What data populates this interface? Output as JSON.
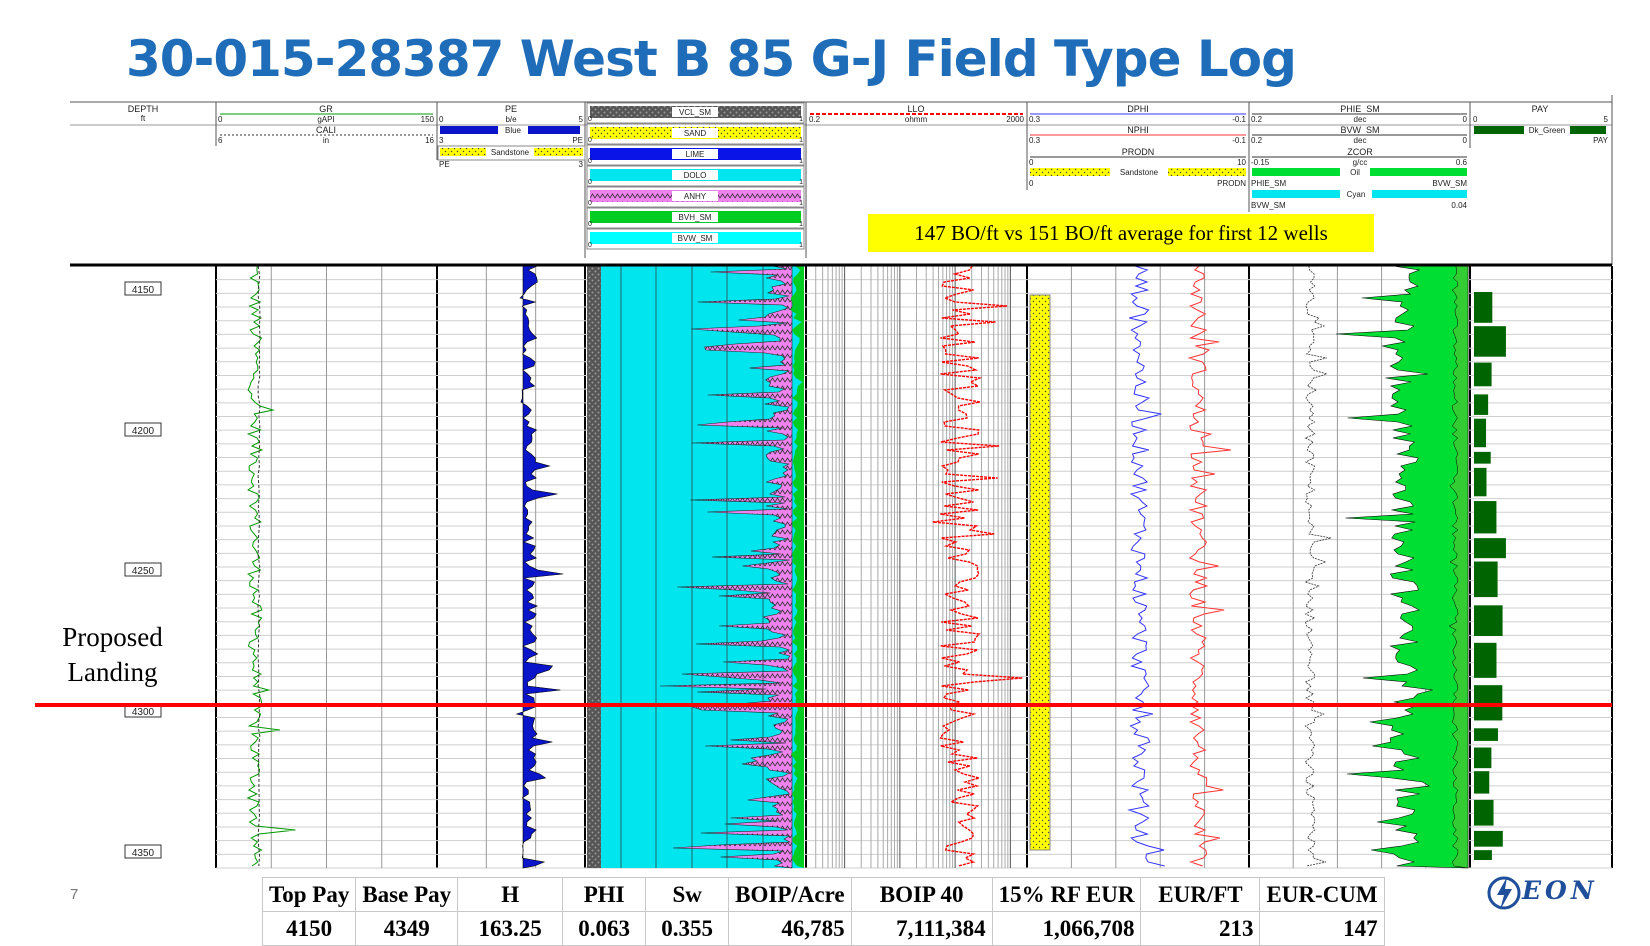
{
  "title": "30-015-28387 West B 85 G-J Field Type Log",
  "annotation": "147 BO/ft vs 151 BO/ft average for first 12 wells",
  "landing_label": "Proposed Landing",
  "slide_number": "7",
  "logo_text": "EON",
  "header": {
    "depth": {
      "name": "DEPTH",
      "unit": "ft"
    },
    "gr": {
      "name": "GR",
      "unit": "gAPI",
      "min": "0",
      "max": "150"
    },
    "cali": {
      "name": "CALI",
      "unit": "in",
      "min": "6",
      "max": "16"
    },
    "pe": {
      "name": "PE",
      "unit": "b/e",
      "min": "0",
      "max": "5"
    },
    "pe_blue": "Blue",
    "pe_blue_min": "3",
    "pe_blue_max": "PE",
    "pe_sand": "Sandstone",
    "pe_sand_min": "PE",
    "pe_sand_max": "3",
    "lith": [
      "VCL_SM",
      "SAND",
      "LIME",
      "DOLO",
      "ANHY",
      "BVH_SM",
      "BVW_SM"
    ],
    "llo": {
      "name": "LLO",
      "unit": "ohmm",
      "min": "0.2",
      "max": "2000"
    },
    "dphi": {
      "name": "DPHI",
      "min": "0.3",
      "max": "-0.1"
    },
    "nphi": {
      "name": "NPHI",
      "min": "0.3",
      "max": "-0.1"
    },
    "prodn": {
      "name": "PRODN",
      "min": "0",
      "max": "10"
    },
    "prodn_sand": "Sandstone",
    "prodn_sand_min": "0",
    "prodn_sand_max": "PRODN",
    "phie": {
      "name": "PHIE_SM",
      "unit": "dec",
      "min": "0.2",
      "max": "0"
    },
    "bvw": {
      "name": "BVW_SM",
      "unit": "dec",
      "min": "0.2",
      "max": "0"
    },
    "zcor": {
      "name": "ZCOR",
      "unit": "g/cc",
      "min": "-0.15",
      "max": "0.6"
    },
    "oil": "Oil",
    "oil_left": "PHIE_SM",
    "oil_right": "BVW_SM",
    "cyan": "Cyan",
    "cyan_left": "BVW_SM",
    "cyan_right": "0.04",
    "pay": {
      "name": "PAY",
      "min": "0",
      "max": "5"
    },
    "pay_fill": "Dk_Green",
    "pay_fill_right": "PAY"
  },
  "depth_ticks": [
    "4150",
    "4200",
    "4250",
    "4300",
    "4350"
  ],
  "stats": {
    "headers": [
      "Top Pay",
      "Base Pay",
      "H",
      "PHI",
      "Sw",
      "BOIP/Acre",
      "BOIP 40",
      "15% RF EUR",
      "EUR/FT",
      "EUR-CUM"
    ],
    "values": [
      "4150",
      "4349",
      "163.25",
      "0.063",
      "0.355",
      "46,785",
      "7,111,384",
      "1,066,708",
      "213",
      "147"
    ]
  },
  "colors": {
    "title": "#1f6db8",
    "pe_fill": "#0a14c8",
    "sand": "#ffff00",
    "lime": "#0a14e6",
    "dolo": "#00e5ee",
    "anhy": "#ee82ee",
    "bvh": "#00cc22",
    "bvw": "#00ffff",
    "gr": "#009900",
    "llo": "#ff0000",
    "dphi": "#3333ff",
    "nphi": "#ff3333",
    "pay": "#006400",
    "landing": "#ff0000"
  }
}
